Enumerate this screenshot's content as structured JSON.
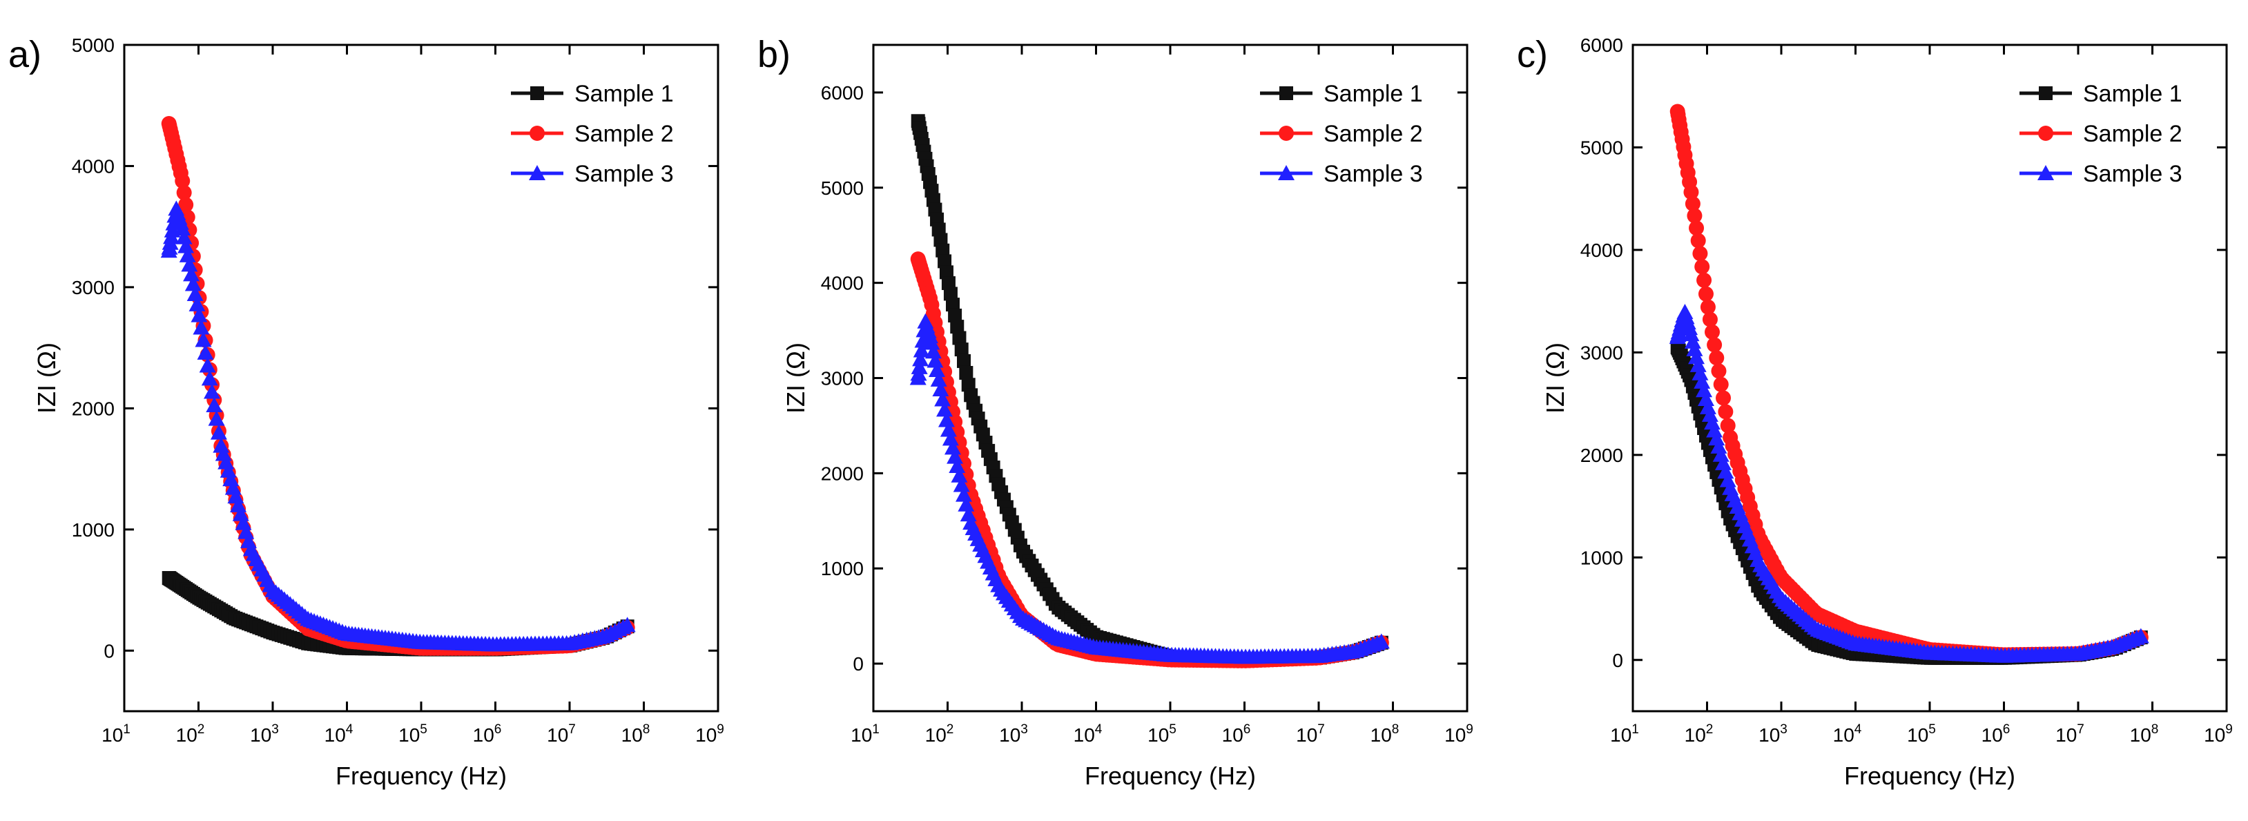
{
  "colors": {
    "sample1": "#111111",
    "sample2": "#ff1a1a",
    "sample3": "#2020ff",
    "axis": "#000000"
  },
  "chart_data": [
    {
      "type": "scatter",
      "panel_label": "a)",
      "xlabel": "Frequency (Hz)",
      "ylabel": "IZI (Ω)",
      "x_scale": "log10",
      "xlim": [
        10,
        1000000000
      ],
      "ylim": [
        -500,
        5000
      ],
      "y_ticks": [
        "0",
        "1000",
        "2000",
        "3000",
        "4000",
        "5000"
      ],
      "x_tick_bases": [
        "10",
        "10",
        "10",
        "10",
        "10",
        "10",
        "10",
        "10",
        "10"
      ],
      "x_tick_exponents": [
        "1",
        "2",
        "3",
        "4",
        "5",
        "6",
        "7",
        "8",
        "9"
      ],
      "legend": [
        "Sample 1",
        "Sample 2",
        "Sample 3"
      ],
      "legend_position": "top-right",
      "series": [
        {
          "name": "Sample 1",
          "marker": "square",
          "x": [
            40,
            100,
            300,
            1000,
            3000,
            10000,
            100000,
            1000000,
            10000000,
            30000000,
            60000000
          ],
          "y": [
            600,
            440,
            270,
            150,
            60,
            20,
            10,
            10,
            40,
            110,
            200
          ]
        },
        {
          "name": "Sample 2",
          "marker": "circle",
          "x": [
            40,
            60,
            100,
            200,
            500,
            1000,
            3000,
            10000,
            100000,
            1000000,
            10000000,
            30000000,
            60000000
          ],
          "y": [
            4350,
            3900,
            2950,
            1700,
            800,
            450,
            180,
            80,
            20,
            20,
            40,
            110,
            190
          ]
        },
        {
          "name": "Sample 3",
          "marker": "triangle",
          "x": [
            40,
            50,
            60,
            100,
            200,
            500,
            1000,
            3000,
            10000,
            100000,
            1000000,
            10000000,
            30000000,
            60000000
          ],
          "y": [
            3300,
            3650,
            3500,
            2800,
            1700,
            850,
            500,
            260,
            140,
            70,
            50,
            60,
            120,
            210
          ]
        }
      ]
    },
    {
      "type": "scatter",
      "panel_label": "b)",
      "xlabel": "Frequency (Hz)",
      "ylabel": "IZI (Ω)",
      "x_scale": "log10",
      "xlim": [
        10,
        1000000000
      ],
      "ylim": [
        -500,
        6500
      ],
      "y_ticks": [
        "0",
        "1000",
        "2000",
        "3000",
        "4000",
        "5000",
        "6000"
      ],
      "x_tick_bases": [
        "10",
        "10",
        "10",
        "10",
        "10",
        "10",
        "10",
        "10",
        "10"
      ],
      "x_tick_exponents": [
        "1",
        "2",
        "3",
        "4",
        "5",
        "6",
        "7",
        "8",
        "9"
      ],
      "legend": [
        "Sample 1",
        "Sample 2",
        "Sample 3"
      ],
      "legend_position": "top-right",
      "series": [
        {
          "name": "Sample 1",
          "marker": "square",
          "x": [
            40,
            60,
            100,
            200,
            500,
            1000,
            3000,
            10000,
            100000,
            1000000,
            10000000,
            30000000,
            70000000
          ],
          "y": [
            5700,
            5000,
            4050,
            2850,
            1850,
            1200,
            600,
            280,
            70,
            40,
            60,
            120,
            220
          ]
        },
        {
          "name": "Sample 2",
          "marker": "circle",
          "x": [
            40,
            60,
            100,
            200,
            500,
            1000,
            3000,
            10000,
            100000,
            1000000,
            10000000,
            30000000,
            70000000
          ],
          "y": [
            4250,
            3800,
            2900,
            1800,
            900,
            500,
            200,
            100,
            40,
            30,
            60,
            120,
            220
          ]
        },
        {
          "name": "Sample 3",
          "marker": "triangle",
          "x": [
            40,
            50,
            60,
            100,
            200,
            500,
            1000,
            3000,
            10000,
            100000,
            1000000,
            10000000,
            30000000,
            70000000
          ],
          "y": [
            3000,
            3600,
            3400,
            2500,
            1500,
            800,
            480,
            270,
            170,
            90,
            70,
            80,
            130,
            230
          ]
        }
      ]
    },
    {
      "type": "scatter",
      "panel_label": "c)",
      "xlabel": "Frequency (Hz)",
      "ylabel": "IZI (Ω)",
      "x_scale": "log10",
      "xlim": [
        10,
        1000000000
      ],
      "ylim": [
        -500,
        6000
      ],
      "y_ticks": [
        "0",
        "1000",
        "2000",
        "3000",
        "4000",
        "5000",
        "6000"
      ],
      "x_tick_bases": [
        "10",
        "10",
        "10",
        "10",
        "10",
        "10",
        "10",
        "10",
        "10"
      ],
      "x_tick_exponents": [
        "1",
        "2",
        "3",
        "4",
        "5",
        "6",
        "7",
        "8",
        "9"
      ],
      "legend": [
        "Sample 1",
        "Sample 2",
        "Sample 3"
      ],
      "legend_position": "top-right",
      "series": [
        {
          "name": "Sample 1",
          "marker": "square",
          "x": [
            40,
            60,
            100,
            200,
            500,
            1000,
            3000,
            10000,
            100000,
            1000000,
            10000000,
            30000000,
            70000000
          ],
          "y": [
            3050,
            2750,
            2150,
            1400,
            700,
            400,
            150,
            60,
            20,
            20,
            50,
            110,
            220
          ]
        },
        {
          "name": "Sample 2",
          "marker": "circle",
          "x": [
            40,
            60,
            100,
            200,
            500,
            1000,
            3000,
            10000,
            100000,
            1000000,
            10000000,
            30000000,
            70000000
          ],
          "y": [
            5350,
            4600,
            3500,
            2200,
            1200,
            800,
            450,
            280,
            100,
            50,
            60,
            120,
            220
          ]
        },
        {
          "name": "Sample 3",
          "marker": "triangle",
          "x": [
            40,
            50,
            60,
            100,
            200,
            500,
            1000,
            3000,
            10000,
            100000,
            1000000,
            10000000,
            30000000,
            70000000
          ],
          "y": [
            3150,
            3400,
            3200,
            2500,
            1700,
            950,
            600,
            300,
            160,
            70,
            40,
            60,
            130,
            230
          ]
        }
      ]
    }
  ]
}
